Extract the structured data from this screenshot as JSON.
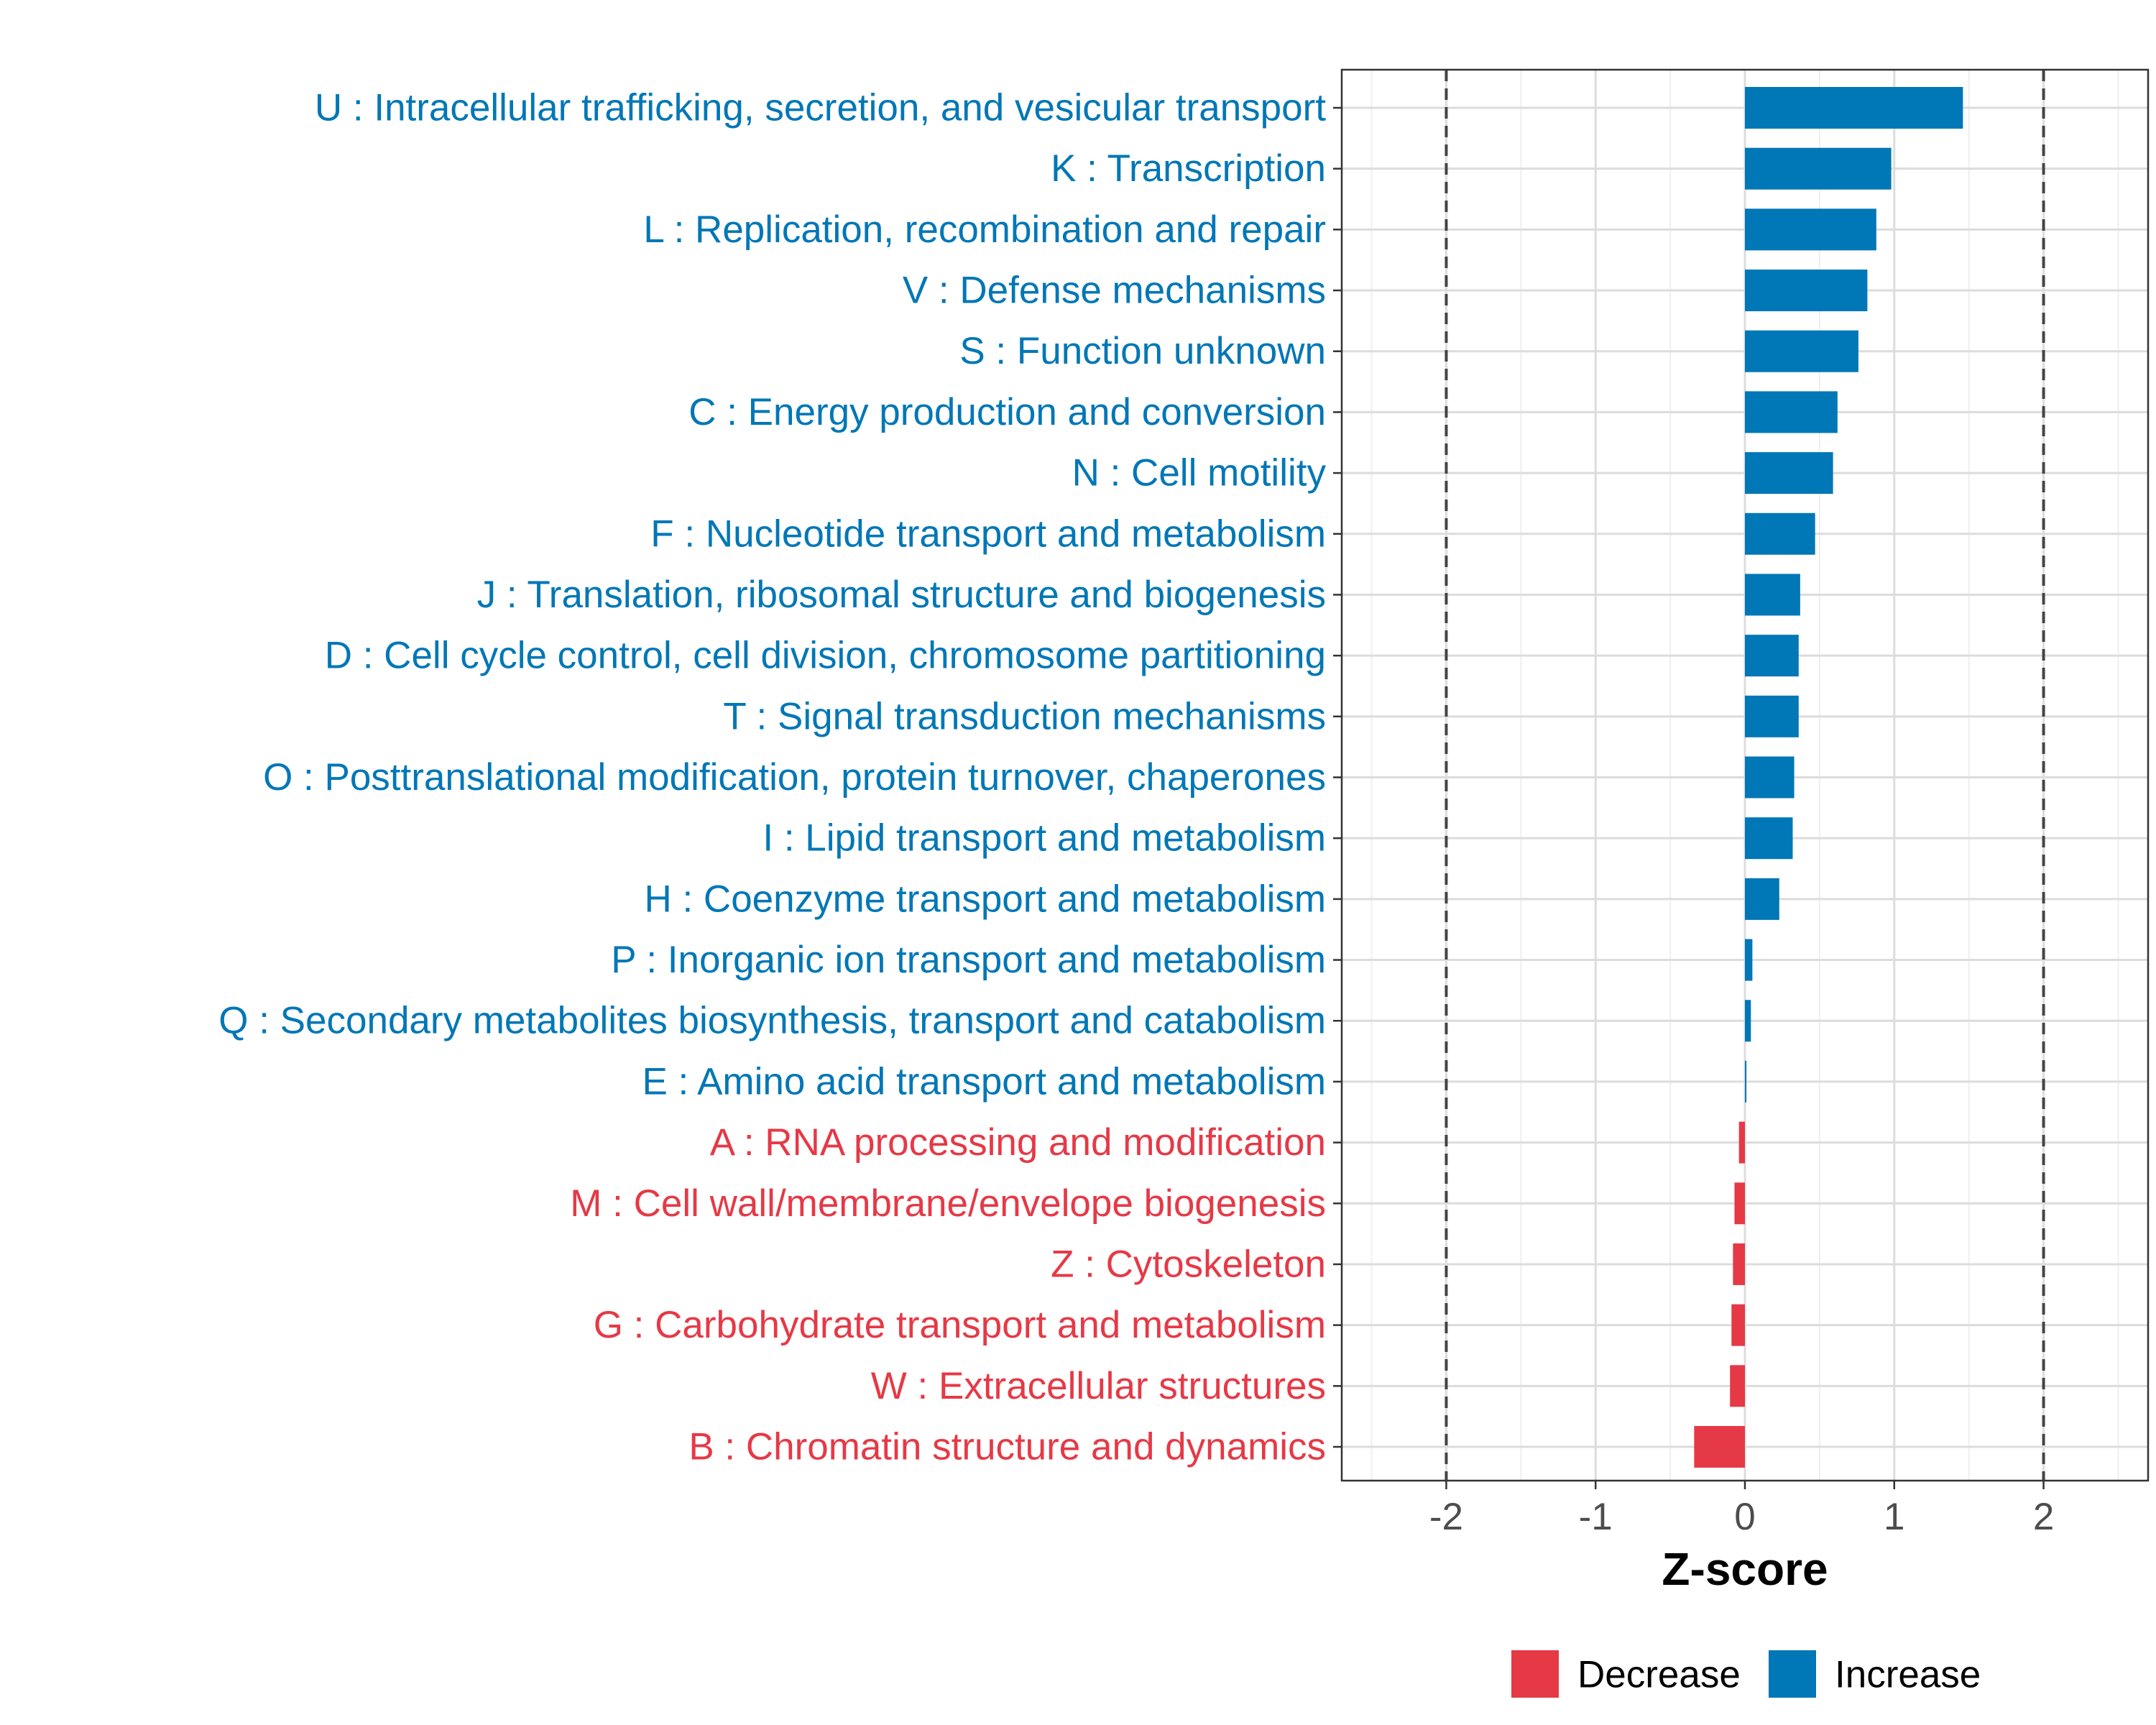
{
  "chart_data": {
    "type": "bar",
    "orientation": "horizontal",
    "xlabel": "Z-score",
    "xlim": [
      -2.7,
      2.7
    ],
    "xticks": [
      -2,
      -1,
      0,
      1,
      2
    ],
    "xtick_labels": [
      "-2",
      "-1",
      "0",
      "1",
      "2"
    ],
    "reference_lines": [
      -2,
      2
    ],
    "legend": {
      "position": "bottom",
      "items": [
        {
          "key": "decrease",
          "label": "Decrease",
          "color": "#E63946"
        },
        {
          "key": "increase",
          "label": "Increase",
          "color": "#0077B6"
        }
      ]
    },
    "categories": [
      "U : Intracellular trafficking, secretion, and vesicular transport",
      "K : Transcription",
      "L : Replication, recombination and repair",
      "V : Defense mechanisms",
      "S : Function unknown",
      "C : Energy production and conversion",
      "N : Cell motility",
      "F : Nucleotide transport and metabolism",
      "J : Translation, ribosomal structure and biogenesis",
      "D : Cell cycle control, cell division, chromosome partitioning",
      "T : Signal transduction mechanisms",
      "O : Posttranslational modification, protein turnover, chaperones",
      "I : Lipid transport and metabolism",
      "H : Coenzyme transport and metabolism",
      "P : Inorganic ion transport and metabolism",
      "Q : Secondary metabolites biosynthesis, transport and catabolism",
      "E : Amino acid transport and metabolism",
      "A : RNA processing and modification",
      "M : Cell wall/membrane/envelope biogenesis",
      "Z : Cytoskeleton",
      "G : Carbohydrate transport and metabolism",
      "W : Extracellular structures",
      "B : Chromatin structure and dynamics"
    ],
    "values": [
      1.46,
      0.98,
      0.88,
      0.82,
      0.76,
      0.62,
      0.59,
      0.47,
      0.37,
      0.36,
      0.36,
      0.33,
      0.32,
      0.23,
      0.05,
      0.04,
      0.01,
      -0.04,
      -0.07,
      -0.08,
      -0.09,
      -0.1,
      -0.34
    ]
  }
}
